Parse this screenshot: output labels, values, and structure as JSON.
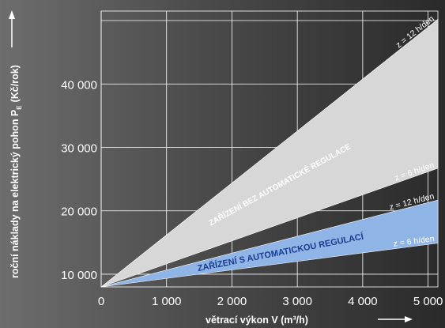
{
  "chart_data": {
    "type": "area",
    "xlabel": "větrací výkon V (m³/h)",
    "ylabel": "roční náklady na elektrický pohon P",
    "ylabel_sub": "E",
    "ylabel_unit": "(Kč/rok)",
    "x_ticks": [
      0,
      1000,
      2000,
      3000,
      4000,
      5000
    ],
    "x_tick_labels": [
      "0",
      "1 000",
      "2 000",
      "3 000",
      "4 000",
      "5 000"
    ],
    "y_ticks": [
      10000,
      20000,
      30000,
      40000
    ],
    "y_tick_labels": [
      "10 000",
      "20 000",
      "30 000",
      "40 000"
    ],
    "xlim": [
      0,
      5150
    ],
    "ylim": [
      8000,
      51500
    ],
    "grid": true,
    "bands": [
      {
        "name": "ZAŘÍZENÍ BEZ AUTOMATICKÉ REGULACE",
        "color": "#d7d7d7",
        "label_color": "#ffffff",
        "lower": {
          "label": "z = 6 h/den",
          "x": [
            0,
            5150
          ],
          "y": [
            8000,
            26700
          ]
        },
        "upper": {
          "label": "z = 12 h/den",
          "x": [
            0,
            5150
          ],
          "y": [
            8000,
            50200
          ]
        }
      },
      {
        "name": "ZAŘÍZENÍ S AUTOMATICKOU REGULACÍ",
        "color": "#8fb4e6",
        "label_color": "#1a3d8f",
        "lower": {
          "label": "z = 6 h/den",
          "x": [
            0,
            5150
          ],
          "y": [
            8000,
            14900
          ]
        },
        "upper": {
          "label": "z = 12 h/den",
          "x": [
            0,
            5150
          ],
          "y": [
            8000,
            21700
          ]
        }
      }
    ]
  }
}
